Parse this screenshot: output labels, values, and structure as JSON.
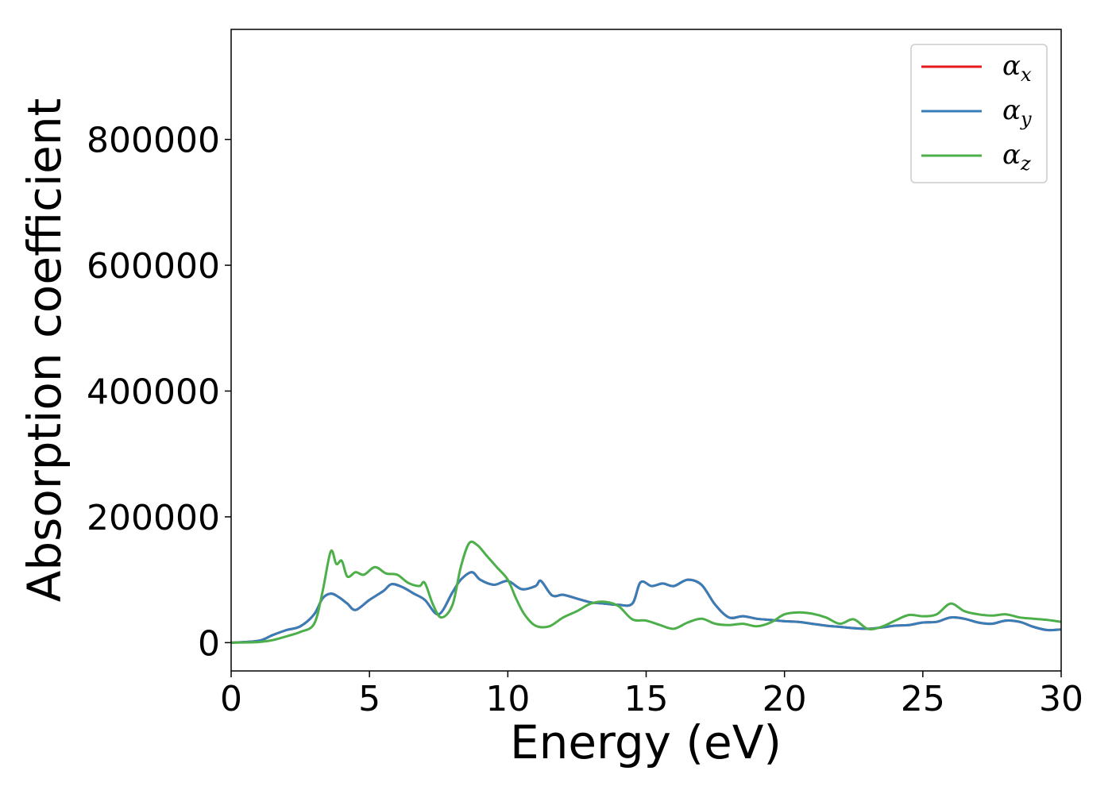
{
  "chart_data": {
    "type": "line",
    "title": "",
    "xlabel": "Energy (eV)",
    "ylabel": "Absorption coefficient",
    "xlim": [
      0,
      30
    ],
    "ylim": [
      -45000,
      975000
    ],
    "xticks": [
      0,
      5,
      10,
      15,
      20,
      25,
      30
    ],
    "xtick_labels": [
      "0",
      "5",
      "10",
      "15",
      "20",
      "25",
      "30"
    ],
    "yticks": [
      0,
      200000,
      400000,
      600000,
      800000
    ],
    "ytick_labels": [
      "0",
      "200000",
      "400000",
      "600000",
      "800000"
    ],
    "grid": false,
    "legend": {
      "placement": "top-right"
    },
    "series": [
      {
        "name": "α",
        "subscript": "x",
        "color": "#e41a1c",
        "x": [
          0,
          1,
          1.5,
          2,
          2.5,
          3,
          3.3,
          3.6,
          3.9,
          4.2,
          4.5,
          5,
          5.5,
          5.8,
          6.2,
          6.6,
          7,
          7.5,
          8,
          8.3,
          8.7,
          9,
          9.5,
          10,
          10.5,
          11,
          11.2,
          11.6,
          12,
          12.5,
          13,
          13.5,
          14,
          14.5,
          14.8,
          15.2,
          15.6,
          16,
          16.5,
          17,
          17.5,
          18,
          18.5,
          19,
          19.5,
          20,
          20.5,
          21,
          21.5,
          22,
          22.5,
          23,
          23.5,
          24,
          24.5,
          25,
          25.5,
          26,
          26.5,
          27,
          27.5,
          28,
          28.5,
          29,
          29.5,
          30
        ],
        "y": [
          0,
          3000,
          12000,
          20000,
          26000,
          45000,
          70000,
          78000,
          72000,
          62000,
          52000,
          68000,
          82000,
          93000,
          88000,
          78000,
          68000,
          45000,
          80000,
          100000,
          112000,
          100000,
          92000,
          98000,
          85000,
          90000,
          98000,
          75000,
          76000,
          70000,
          64000,
          62000,
          60000,
          62000,
          96000,
          90000,
          94000,
          90000,
          100000,
          92000,
          60000,
          40000,
          42000,
          38000,
          36000,
          34000,
          33000,
          30000,
          27000,
          25000,
          23000,
          22000,
          24000,
          27000,
          28000,
          32000,
          33000,
          40000,
          38000,
          32000,
          30000,
          35000,
          33000,
          25000,
          20000,
          21000
        ]
      },
      {
        "name": "α",
        "subscript": "y",
        "color": "#377eb8",
        "x": [
          0,
          1,
          1.5,
          2,
          2.5,
          3,
          3.3,
          3.6,
          3.9,
          4.2,
          4.5,
          5,
          5.5,
          5.8,
          6.2,
          6.6,
          7,
          7.5,
          8,
          8.3,
          8.7,
          9,
          9.5,
          10,
          10.5,
          11,
          11.2,
          11.6,
          12,
          12.5,
          13,
          13.5,
          14,
          14.5,
          14.8,
          15.2,
          15.6,
          16,
          16.5,
          17,
          17.5,
          18,
          18.5,
          19,
          19.5,
          20,
          20.5,
          21,
          21.5,
          22,
          22.5,
          23,
          23.5,
          24,
          24.5,
          25,
          25.5,
          26,
          26.5,
          27,
          27.5,
          28,
          28.5,
          29,
          29.5,
          30
        ],
        "y": [
          0,
          3000,
          12000,
          20000,
          26000,
          45000,
          70000,
          78000,
          72000,
          62000,
          52000,
          68000,
          82000,
          93000,
          88000,
          78000,
          68000,
          45000,
          80000,
          100000,
          112000,
          100000,
          92000,
          98000,
          85000,
          90000,
          98000,
          75000,
          76000,
          70000,
          64000,
          62000,
          60000,
          62000,
          96000,
          90000,
          94000,
          90000,
          100000,
          92000,
          60000,
          40000,
          42000,
          38000,
          36000,
          34000,
          33000,
          30000,
          27000,
          25000,
          23000,
          22000,
          24000,
          27000,
          28000,
          32000,
          33000,
          40000,
          38000,
          32000,
          30000,
          35000,
          33000,
          25000,
          20000,
          21000
        ]
      },
      {
        "name": "α",
        "subscript": "z",
        "color": "#4daf4a",
        "x": [
          0,
          1,
          1.5,
          2,
          2.5,
          3,
          3.3,
          3.6,
          3.8,
          4,
          4.2,
          4.5,
          4.8,
          5.2,
          5.6,
          6,
          6.4,
          6.8,
          7,
          7.3,
          7.6,
          8,
          8.3,
          8.6,
          8.9,
          9.2,
          9.6,
          10,
          10.3,
          10.6,
          11,
          11.5,
          12,
          12.5,
          13,
          13.5,
          14,
          14.5,
          15,
          15.5,
          16,
          16.5,
          17,
          17.5,
          18,
          18.5,
          19,
          19.5,
          20,
          20.5,
          21,
          21.5,
          22,
          22.5,
          23,
          23.5,
          24,
          24.5,
          25,
          25.5,
          26,
          26.5,
          27,
          27.5,
          28,
          28.5,
          29,
          29.5,
          30
        ],
        "y": [
          0,
          1000,
          4000,
          10000,
          17000,
          30000,
          80000,
          145000,
          125000,
          130000,
          105000,
          112000,
          108000,
          120000,
          110000,
          108000,
          95000,
          90000,
          95000,
          60000,
          40000,
          60000,
          120000,
          158000,
          155000,
          140000,
          120000,
          100000,
          70000,
          45000,
          27000,
          26000,
          40000,
          50000,
          62000,
          65000,
          58000,
          37000,
          35000,
          28000,
          22000,
          32000,
          38000,
          30000,
          28000,
          30000,
          26000,
          32000,
          45000,
          48000,
          46000,
          40000,
          30000,
          37000,
          22000,
          25000,
          35000,
          44000,
          42000,
          45000,
          62000,
          50000,
          45000,
          43000,
          45000,
          40000,
          38000,
          36000,
          33000
        ]
      }
    ]
  }
}
